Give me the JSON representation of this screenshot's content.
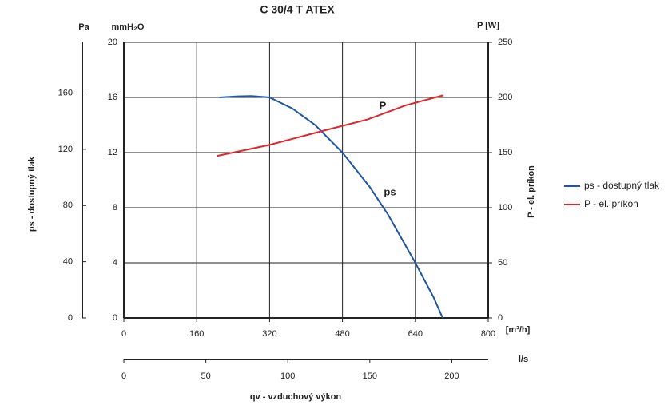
{
  "chart_data": {
    "type": "line",
    "title": "C 30/4 T ATEX",
    "x_label": "qv - vzduchový výkon",
    "x_unit": "[m³/h]",
    "xlim": [
      0,
      800
    ],
    "xticks": [
      0,
      160,
      320,
      480,
      640,
      800
    ],
    "x2_unit": "l/s",
    "x2lim": [
      0,
      222.2
    ],
    "x2ticks": [
      0,
      50,
      100,
      150,
      200
    ],
    "y_unit": "mmH₂O",
    "ylim": [
      0,
      20
    ],
    "yticks": [
      0,
      4,
      8,
      12,
      16,
      20
    ],
    "pa_unit": "Pa",
    "pa_label": "ps - dostupný tlak",
    "pa_lim": [
      0,
      196.1
    ],
    "pa_ticks": [
      0,
      40,
      80,
      120,
      160
    ],
    "y2_unit": "P [W]",
    "y2_label": "P - el. príkon",
    "y2lim": [
      0,
      250
    ],
    "y2ticks": [
      0,
      50,
      100,
      150,
      200,
      250
    ],
    "grid": true,
    "legend": "right",
    "series": [
      {
        "name": "ps - dostupný tlak",
        "annotation": "ps",
        "color": "#1f55a4",
        "x": [
          210,
          250,
          280,
          320,
          370,
          420,
          480,
          540,
          580,
          640,
          680,
          700
        ],
        "values": [
          16,
          16.08,
          16.1,
          16.0,
          15.2,
          14,
          12,
          9.5,
          7.5,
          4,
          1.5,
          0
        ]
      },
      {
        "name": "P - el. príkon",
        "annotation": "P",
        "color": "#e0262b",
        "axis": "y2",
        "x": [
          205,
          320,
          440,
          535,
          620,
          702
        ],
        "values": [
          147,
          157,
          170,
          180,
          193,
          202
        ]
      }
    ]
  }
}
